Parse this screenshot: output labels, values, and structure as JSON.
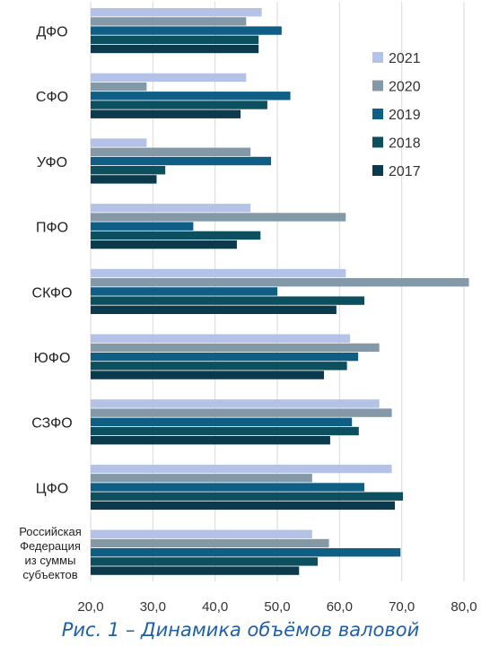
{
  "chart_data": {
    "type": "bar",
    "orientation": "horizontal",
    "categories": [
      "ДФО",
      "СФО",
      "УФО",
      "ПФО",
      "СКФО",
      "ЮФО",
      "СЗФО",
      "ЦФО",
      [
        "Российская",
        "Федерация",
        "из суммы",
        "субъектов"
      ]
    ],
    "series": [
      {
        "name": "2021",
        "color": "#b4c2e8",
        "values": [
          47.5,
          45.0,
          29.0,
          45.7,
          61.0,
          61.7,
          66.4,
          68.4,
          55.6
        ]
      },
      {
        "name": "2020",
        "color": "#8499a7",
        "values": [
          45.0,
          29.0,
          45.7,
          61.0,
          80.8,
          66.4,
          68.4,
          55.6,
          58.3
        ]
      },
      {
        "name": "2019",
        "color": "#0e5e86",
        "values": [
          50.7,
          52.1,
          49.0,
          36.5,
          50.0,
          63.0,
          62.0,
          64.0,
          69.8
        ]
      },
      {
        "name": "2018",
        "color": "#0c4f5f",
        "values": [
          47.0,
          48.4,
          32.0,
          47.3,
          64.0,
          61.2,
          63.1,
          70.2,
          56.5
        ]
      },
      {
        "name": "2017",
        "color": "#0b3a4c",
        "values": [
          47.0,
          44.1,
          30.6,
          43.5,
          59.5,
          57.5,
          58.5,
          68.9,
          53.5
        ]
      }
    ],
    "xlim": [
      20,
      80
    ],
    "xticks": [
      "20,0",
      "30,0",
      "40,0",
      "50,0",
      "60,0",
      "70,0",
      "80,0"
    ],
    "grid": "vertical",
    "legend_position": "right",
    "legend_order": [
      "2021",
      "2020",
      "2019",
      "2018",
      "2017"
    ]
  },
  "caption": "Рис. 1 – Динамика объёмов валовой"
}
